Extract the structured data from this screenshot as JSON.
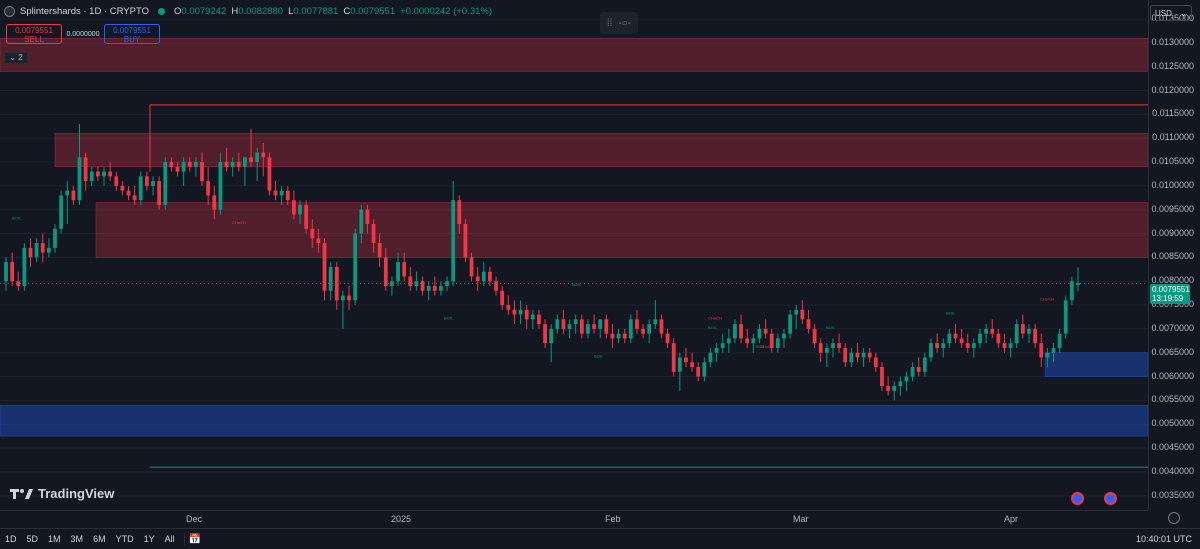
{
  "header": {
    "symbol_title": "Splintershards · 1D · CRYPTO",
    "ohlc": [
      {
        "key": "O",
        "value": "0.0079242"
      },
      {
        "key": "H",
        "value": "0.0082880"
      },
      {
        "key": "L",
        "value": "0.0077881"
      },
      {
        "key": "C",
        "value": "0.0079551"
      }
    ],
    "change": "+0.0000242 (+0.31%)"
  },
  "trade": {
    "sell_price": "0.0079551",
    "sell_label": "SELL",
    "spread": "0.0000000",
    "buy_price": "0.0079551",
    "buy_label": "BUY"
  },
  "indicator_toggle": "2",
  "currency": "USD",
  "last_price": {
    "price": "0.0079551",
    "countdown": "13:19:59"
  },
  "logo_text": "TradingView",
  "colors": {
    "bull": "#089981",
    "bear": "#f23645",
    "supply_zone": "#f23645",
    "demand_zone": "#2962ff",
    "background": "#131722"
  },
  "time_ticks": [
    "Dec",
    "2025",
    "Feb",
    "Mar",
    "Apr"
  ],
  "range_buttons": [
    "1D",
    "5D",
    "1M",
    "3M",
    "6M",
    "YTD",
    "1Y",
    "All"
  ],
  "clock": "10:40:01 UTC",
  "chart_data": {
    "type": "candlestick",
    "symbol": "Splintershards",
    "interval": "1D",
    "price_ticks": [
      "0.0135000",
      "0.0130000",
      "0.0125000",
      "0.0120000",
      "0.0115000",
      "0.0110000",
      "0.0105000",
      "0.0100000",
      "0.0095000",
      "0.0090000",
      "0.0085000",
      "0.0080000",
      "0.0075000",
      "0.0070000",
      "0.0065000",
      "0.0060000",
      "0.0055000",
      "0.0050000",
      "0.0045000",
      "0.0040000",
      "0.0035000"
    ],
    "ylim": [
      0.0032,
      0.0139
    ],
    "x_axis_labels": [
      "Dec",
      "2025",
      "Feb",
      "Mar",
      "Apr"
    ],
    "last_close": 0.0079551,
    "zones": [
      {
        "kind": "supply",
        "from_day": 0,
        "to_day": 1148,
        "low": 0.0124,
        "high": 0.0131
      },
      {
        "kind": "supply",
        "from_day": 55,
        "to_day": 1148,
        "low": 0.0104,
        "high": 0.0111
      },
      {
        "kind": "supply",
        "from_day": 96,
        "to_day": 1148,
        "low": 0.0085,
        "high": 0.00965
      },
      {
        "kind": "demand",
        "from_day": 0,
        "to_day": 1148,
        "low": 0.00475,
        "high": 0.0054
      },
      {
        "kind": "demand",
        "from_day": 1045,
        "to_day": 1148,
        "low": 0.006,
        "high": 0.0065
      }
    ],
    "level_lines": [
      {
        "price": 0.0117,
        "color": "#f23645"
      },
      {
        "price": 0.0041,
        "color": "#089981"
      }
    ],
    "structure_labels": [
      {
        "text": "BOS",
        "price": 0.0093
      },
      {
        "text": "CHoCH",
        "price": 0.0092
      },
      {
        "text": "BOS",
        "price": 0.0072
      },
      {
        "text": "BOS",
        "price": 0.0079
      },
      {
        "text": "BOS",
        "price": 0.0064
      },
      {
        "text": "CHoCH",
        "price": 0.0072
      },
      {
        "text": "BOS",
        "price": 0.007
      },
      {
        "text": "BOS",
        "price": 0.0066
      },
      {
        "text": "CHoCH",
        "price": 0.0066
      },
      {
        "text": "BOS",
        "price": 0.007
      },
      {
        "text": "BOS",
        "price": 0.0073
      },
      {
        "text": "CHoCH",
        "price": 0.0076
      }
    ],
    "candles": [
      [
        0.008,
        0.0085,
        0.0078,
        0.0084
      ],
      [
        0.0084,
        0.0086,
        0.0079,
        0.008
      ],
      [
        0.008,
        0.0082,
        0.0078,
        0.0079
      ],
      [
        0.0079,
        0.0088,
        0.0078,
        0.0087
      ],
      [
        0.0087,
        0.0089,
        0.0083,
        0.0085
      ],
      [
        0.0085,
        0.0089,
        0.0084,
        0.0088
      ],
      [
        0.0088,
        0.009,
        0.0084,
        0.0086
      ],
      [
        0.0086,
        0.0089,
        0.0085,
        0.0087
      ],
      [
        0.0087,
        0.0092,
        0.0086,
        0.0091
      ],
      [
        0.0091,
        0.0099,
        0.009,
        0.0098
      ],
      [
        0.0098,
        0.0101,
        0.0092,
        0.0099
      ],
      [
        0.0099,
        0.01,
        0.0096,
        0.0097
      ],
      [
        0.0097,
        0.0113,
        0.0096,
        0.0106
      ],
      [
        0.0106,
        0.0107,
        0.0099,
        0.0101
      ],
      [
        0.0101,
        0.0104,
        0.01,
        0.0103
      ],
      [
        0.0103,
        0.0104,
        0.0101,
        0.0102
      ],
      [
        0.0102,
        0.0104,
        0.01,
        0.0103
      ],
      [
        0.0103,
        0.0105,
        0.0101,
        0.0102
      ],
      [
        0.0102,
        0.0103,
        0.0099,
        0.01
      ],
      [
        0.01,
        0.0101,
        0.0098,
        0.0099
      ],
      [
        0.0099,
        0.01,
        0.0097,
        0.0098
      ],
      [
        0.0098,
        0.01,
        0.0096,
        0.0097
      ],
      [
        0.0097,
        0.0103,
        0.0096,
        0.0102
      ],
      [
        0.0102,
        0.0103,
        0.0099,
        0.01
      ],
      [
        0.01,
        0.0102,
        0.0098,
        0.0101
      ],
      [
        0.0101,
        0.0102,
        0.0095,
        0.0096
      ],
      [
        0.0096,
        0.0106,
        0.0095,
        0.0105
      ],
      [
        0.0105,
        0.0106,
        0.0103,
        0.0104
      ],
      [
        0.0104,
        0.0105,
        0.0102,
        0.0103
      ],
      [
        0.0103,
        0.0106,
        0.01,
        0.0105
      ],
      [
        0.0105,
        0.0106,
        0.0103,
        0.0104
      ],
      [
        0.0104,
        0.0106,
        0.0102,
        0.0105
      ],
      [
        0.0105,
        0.0107,
        0.01,
        0.0101
      ],
      [
        0.0101,
        0.0104,
        0.0096,
        0.0098
      ],
      [
        0.0098,
        0.01,
        0.0093,
        0.0095
      ],
      [
        0.0095,
        0.0107,
        0.0094,
        0.0105
      ],
      [
        0.0105,
        0.0108,
        0.0103,
        0.0104
      ],
      [
        0.0104,
        0.0106,
        0.0102,
        0.0105
      ],
      [
        0.0105,
        0.0107,
        0.0103,
        0.0104
      ],
      [
        0.0104,
        0.0106,
        0.01,
        0.0106
      ],
      [
        0.0106,
        0.0112,
        0.0104,
        0.0105
      ],
      [
        0.0105,
        0.0108,
        0.0101,
        0.0107
      ],
      [
        0.0107,
        0.0109,
        0.0102,
        0.0106
      ],
      [
        0.0106,
        0.0107,
        0.0098,
        0.0099
      ],
      [
        0.0099,
        0.0101,
        0.0097,
        0.0098
      ],
      [
        0.0098,
        0.01,
        0.0096,
        0.0099
      ],
      [
        0.0099,
        0.01,
        0.0096,
        0.0097
      ],
      [
        0.0097,
        0.0099,
        0.0093,
        0.0094
      ],
      [
        0.0094,
        0.0097,
        0.0092,
        0.0096
      ],
      [
        0.0096,
        0.0097,
        0.009,
        0.0091
      ],
      [
        0.0091,
        0.0093,
        0.0087,
        0.0089
      ],
      [
        0.0089,
        0.0091,
        0.0086,
        0.0088
      ],
      [
        0.0088,
        0.0089,
        0.0076,
        0.0078
      ],
      [
        0.0078,
        0.0084,
        0.0076,
        0.0083
      ],
      [
        0.0083,
        0.0084,
        0.0074,
        0.0076
      ],
      [
        0.0076,
        0.0078,
        0.007,
        0.0077
      ],
      [
        0.0077,
        0.0079,
        0.0074,
        0.0076
      ],
      [
        0.0076,
        0.0091,
        0.0075,
        0.009
      ],
      [
        0.009,
        0.0096,
        0.0088,
        0.0095
      ],
      [
        0.0095,
        0.0096,
        0.009,
        0.0092
      ],
      [
        0.0092,
        0.0093,
        0.0086,
        0.0088
      ],
      [
        0.0088,
        0.009,
        0.0083,
        0.0085
      ],
      [
        0.0085,
        0.0087,
        0.0078,
        0.0079
      ],
      [
        0.0079,
        0.0081,
        0.0077,
        0.008
      ],
      [
        0.008,
        0.0086,
        0.0079,
        0.0084
      ],
      [
        0.0084,
        0.0086,
        0.008,
        0.0081
      ],
      [
        0.0081,
        0.0083,
        0.0078,
        0.0079
      ],
      [
        0.0079,
        0.0082,
        0.0078,
        0.008
      ],
      [
        0.008,
        0.0081,
        0.0077,
        0.0078
      ],
      [
        0.0078,
        0.008,
        0.0076,
        0.0079
      ],
      [
        0.0079,
        0.0081,
        0.0077,
        0.0078
      ],
      [
        0.0078,
        0.008,
        0.0077,
        0.0079
      ],
      [
        0.0079,
        0.0081,
        0.0078,
        0.008
      ],
      [
        0.008,
        0.0101,
        0.0079,
        0.0097
      ],
      [
        0.0097,
        0.0098,
        0.009,
        0.0092
      ],
      [
        0.0092,
        0.0093,
        0.0084,
        0.0085
      ],
      [
        0.0085,
        0.0086,
        0.008,
        0.0081
      ],
      [
        0.0081,
        0.0083,
        0.0078,
        0.008
      ],
      [
        0.008,
        0.0084,
        0.0079,
        0.0082
      ],
      [
        0.0082,
        0.0083,
        0.0079,
        0.008
      ],
      [
        0.008,
        0.0081,
        0.0077,
        0.0078
      ],
      [
        0.0078,
        0.0079,
        0.0074,
        0.0075
      ],
      [
        0.0075,
        0.0077,
        0.0073,
        0.0074
      ],
      [
        0.0074,
        0.0076,
        0.0071,
        0.0073
      ],
      [
        0.0073,
        0.0076,
        0.0071,
        0.0074
      ],
      [
        0.0074,
        0.0075,
        0.007,
        0.0072
      ],
      [
        0.0072,
        0.0074,
        0.007,
        0.0073
      ],
      [
        0.0073,
        0.0074,
        0.007,
        0.0071
      ],
      [
        0.0071,
        0.0072,
        0.0066,
        0.0067
      ],
      [
        0.0067,
        0.0071,
        0.0063,
        0.007
      ],
      [
        0.007,
        0.0073,
        0.0069,
        0.0072
      ],
      [
        0.0072,
        0.0074,
        0.0069,
        0.007
      ],
      [
        0.007,
        0.0072,
        0.0068,
        0.0071
      ],
      [
        0.0071,
        0.0073,
        0.0069,
        0.0072
      ],
      [
        0.0072,
        0.0073,
        0.0068,
        0.0069
      ],
      [
        0.0069,
        0.0072,
        0.0068,
        0.0071
      ],
      [
        0.0071,
        0.0073,
        0.0069,
        0.007
      ],
      [
        0.007,
        0.0072,
        0.0068,
        0.0072
      ],
      [
        0.0072,
        0.0073,
        0.0068,
        0.0069
      ],
      [
        0.0069,
        0.0071,
        0.0066,
        0.0068
      ],
      [
        0.0068,
        0.007,
        0.0067,
        0.0069
      ],
      [
        0.0069,
        0.007,
        0.0067,
        0.0068
      ],
      [
        0.0068,
        0.0073,
        0.0067,
        0.0072
      ],
      [
        0.0072,
        0.0074,
        0.0069,
        0.007
      ],
      [
        0.007,
        0.0071,
        0.0068,
        0.0069
      ],
      [
        0.0069,
        0.0072,
        0.0067,
        0.0071
      ],
      [
        0.0071,
        0.0076,
        0.007,
        0.0072
      ],
      [
        0.0072,
        0.0073,
        0.0068,
        0.0069
      ],
      [
        0.0069,
        0.007,
        0.0066,
        0.0067
      ],
      [
        0.0067,
        0.0068,
        0.006,
        0.0061
      ],
      [
        0.0061,
        0.0065,
        0.0057,
        0.0064
      ],
      [
        0.0064,
        0.0066,
        0.0062,
        0.0063
      ],
      [
        0.0063,
        0.0065,
        0.0061,
        0.0062
      ],
      [
        0.0062,
        0.0063,
        0.0059,
        0.006
      ],
      [
        0.006,
        0.0064,
        0.0059,
        0.0063
      ],
      [
        0.0063,
        0.0066,
        0.0062,
        0.0065
      ],
      [
        0.0065,
        0.0067,
        0.0063,
        0.0066
      ],
      [
        0.0066,
        0.0069,
        0.0065,
        0.0067
      ],
      [
        0.0067,
        0.007,
        0.0065,
        0.0068
      ],
      [
        0.0068,
        0.0072,
        0.0067,
        0.0071
      ],
      [
        0.0071,
        0.0073,
        0.0067,
        0.0068
      ],
      [
        0.0068,
        0.007,
        0.0066,
        0.0067
      ],
      [
        0.0067,
        0.0069,
        0.0065,
        0.0068
      ],
      [
        0.0068,
        0.0071,
        0.0067,
        0.007
      ],
      [
        0.007,
        0.0072,
        0.0068,
        0.0069
      ],
      [
        0.0069,
        0.007,
        0.0065,
        0.0066
      ],
      [
        0.0066,
        0.0069,
        0.0065,
        0.0068
      ],
      [
        0.0068,
        0.007,
        0.0066,
        0.0069
      ],
      [
        0.0069,
        0.0074,
        0.0068,
        0.0073
      ],
      [
        0.0073,
        0.0075,
        0.007,
        0.0074
      ],
      [
        0.0074,
        0.0076,
        0.0071,
        0.0072
      ],
      [
        0.0072,
        0.0074,
        0.0069,
        0.007
      ],
      [
        0.007,
        0.0071,
        0.0066,
        0.0067
      ],
      [
        0.0067,
        0.0068,
        0.0063,
        0.0065
      ],
      [
        0.0065,
        0.0067,
        0.0062,
        0.0066
      ],
      [
        0.0066,
        0.0068,
        0.0064,
        0.0067
      ],
      [
        0.0067,
        0.0069,
        0.0065,
        0.0066
      ],
      [
        0.0066,
        0.0067,
        0.0062,
        0.0063
      ],
      [
        0.0063,
        0.0066,
        0.0062,
        0.0065
      ],
      [
        0.0065,
        0.0067,
        0.0063,
        0.0064
      ],
      [
        0.0064,
        0.0066,
        0.0062,
        0.0065
      ],
      [
        0.0065,
        0.0066,
        0.0063,
        0.0064
      ],
      [
        0.0064,
        0.0065,
        0.0061,
        0.0062
      ],
      [
        0.0062,
        0.0063,
        0.0057,
        0.0058
      ],
      [
        0.0058,
        0.006,
        0.0056,
        0.0057
      ],
      [
        0.0057,
        0.0059,
        0.0055,
        0.0058
      ],
      [
        0.0058,
        0.006,
        0.0056,
        0.0059
      ],
      [
        0.0059,
        0.0061,
        0.0057,
        0.006
      ],
      [
        0.006,
        0.0063,
        0.0059,
        0.0062
      ],
      [
        0.0062,
        0.0064,
        0.006,
        0.0061
      ],
      [
        0.0061,
        0.0065,
        0.006,
        0.0064
      ],
      [
        0.0064,
        0.0068,
        0.0063,
        0.0067
      ],
      [
        0.0067,
        0.0069,
        0.0065,
        0.0066
      ],
      [
        0.0066,
        0.0068,
        0.0064,
        0.0067
      ],
      [
        0.0067,
        0.007,
        0.0066,
        0.0069
      ],
      [
        0.0069,
        0.0071,
        0.0067,
        0.0068
      ],
      [
        0.0068,
        0.007,
        0.0066,
        0.0067
      ],
      [
        0.0067,
        0.0069,
        0.0065,
        0.0066
      ],
      [
        0.0066,
        0.0068,
        0.0064,
        0.0067
      ],
      [
        0.0067,
        0.007,
        0.0066,
        0.0069
      ],
      [
        0.0069,
        0.0071,
        0.0067,
        0.007
      ],
      [
        0.007,
        0.0072,
        0.0068,
        0.0069
      ],
      [
        0.0069,
        0.007,
        0.0066,
        0.0067
      ],
      [
        0.0067,
        0.0069,
        0.0065,
        0.0066
      ],
      [
        0.0066,
        0.0068,
        0.0064,
        0.0067
      ],
      [
        0.0067,
        0.0072,
        0.0066,
        0.0071
      ],
      [
        0.0071,
        0.0073,
        0.0068,
        0.0069
      ],
      [
        0.0069,
        0.0071,
        0.0067,
        0.007
      ],
      [
        0.007,
        0.0071,
        0.0066,
        0.0067
      ],
      [
        0.0067,
        0.0069,
        0.0062,
        0.0064
      ],
      [
        0.0064,
        0.0066,
        0.0062,
        0.0065
      ],
      [
        0.0065,
        0.0067,
        0.0063,
        0.0066
      ],
      [
        0.0066,
        0.007,
        0.0065,
        0.0069
      ],
      [
        0.0069,
        0.0077,
        0.0068,
        0.0076
      ],
      [
        0.0076,
        0.0081,
        0.0075,
        0.008
      ],
      [
        0.00792,
        0.00829,
        0.00779,
        0.00796
      ]
    ]
  }
}
